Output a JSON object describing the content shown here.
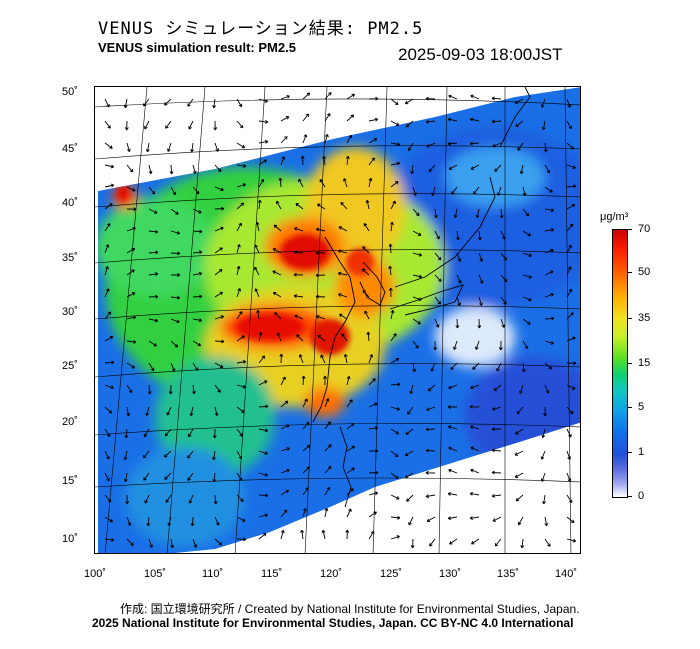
{
  "header": {
    "title_jp": "VENUS シミュレーション結果: PM2.5",
    "title_en": "VENUS simulation result: PM2.5",
    "timestamp": "2025-09-03 18:00JST"
  },
  "map": {
    "lat_labels": [
      "50˚",
      "45˚",
      "40˚",
      "35˚",
      "30˚",
      "25˚",
      "20˚",
      "15˚",
      "10˚"
    ],
    "lon_labels": [
      "100˚",
      "105˚",
      "110˚",
      "115˚",
      "120˚",
      "125˚",
      "130˚",
      "135˚",
      "140˚"
    ],
    "colors": {
      "no_data": "#ffffff",
      "coast": "#000000",
      "arrow": "#000000"
    }
  },
  "colorbar": {
    "unit": "μg/m³",
    "labels": [
      "70",
      "50",
      "35",
      "15",
      "5",
      "1",
      "0"
    ]
  },
  "footer": {
    "credit": "作成: 国立環境研究所 / Created by National Institute for Environmental Studies, Japan.",
    "license": "2025 National Institute for Environmental Studies, Japan. CC BY-NC 4.0 International"
  }
}
